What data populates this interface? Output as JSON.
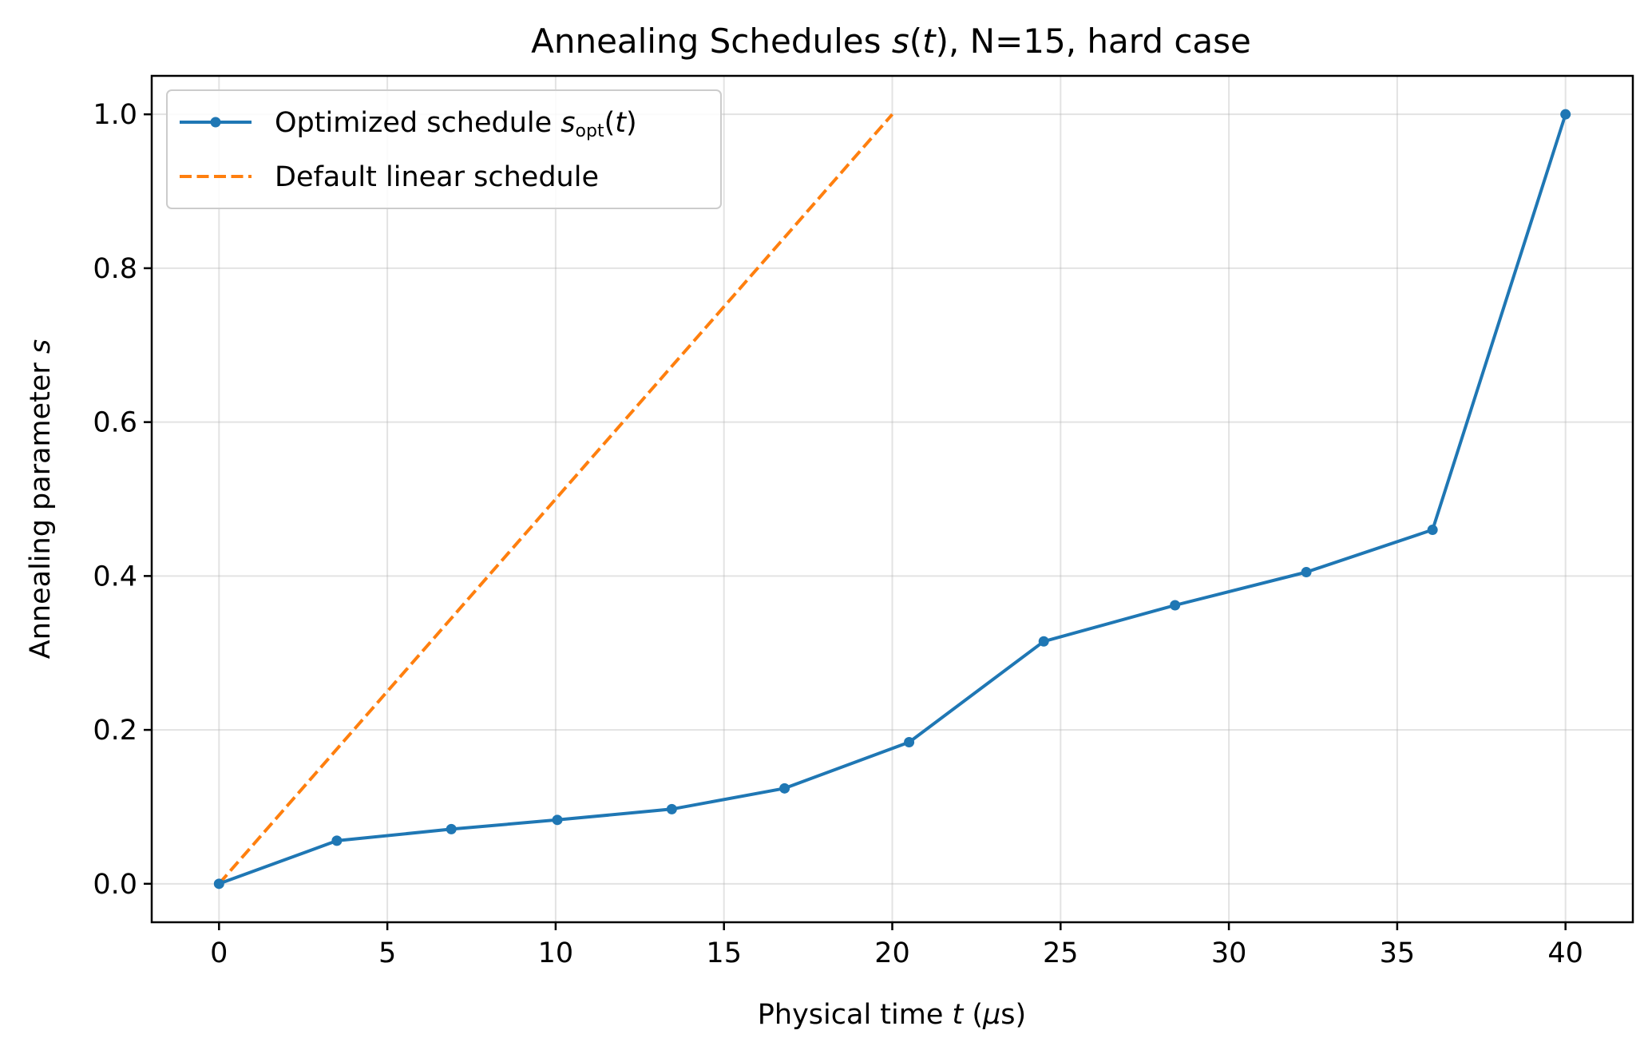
{
  "chart_data": {
    "type": "line",
    "title": {
      "prefix": "Annealing Schedules ",
      "func": "s",
      "paren_open": "(",
      "var": "t",
      "suffix": "), N=15, hard case"
    },
    "xlabel": {
      "prefix": "Physical time ",
      "var": "t",
      "paren_open": " (",
      "mu": "μ",
      "unit": "s)"
    },
    "ylabel": {
      "prefix": "Annealing parameter ",
      "var": "s"
    },
    "xlim": [
      -2,
      42
    ],
    "ylim": [
      -0.05,
      1.05
    ],
    "xticks": [
      0,
      5,
      10,
      15,
      20,
      25,
      30,
      35,
      40
    ],
    "yticks": [
      0.0,
      0.2,
      0.4,
      0.6,
      0.8,
      1.0
    ],
    "xtick_labels": [
      "0",
      "5",
      "10",
      "15",
      "20",
      "25",
      "30",
      "35",
      "40"
    ],
    "ytick_labels": [
      "0.0",
      "0.2",
      "0.4",
      "0.6",
      "0.8",
      "1.0"
    ],
    "grid": true,
    "legend_position": "top-left",
    "series": [
      {
        "name": "Optimized schedule",
        "legend": {
          "prefix": "Optimized schedule ",
          "var": "s",
          "sub": "opt",
          "paren_open": "(",
          "arg": "t",
          "paren_close": ")"
        },
        "color": "#1f77b4",
        "style": "solid",
        "markers": true,
        "x": [
          0,
          3.5,
          6.9,
          10.05,
          13.45,
          16.8,
          20.5,
          24.5,
          28.4,
          32.3,
          36.05,
          40
        ],
        "y": [
          0.0,
          0.056,
          0.071,
          0.083,
          0.097,
          0.124,
          0.184,
          0.315,
          0.362,
          0.405,
          0.46,
          1.0
        ]
      },
      {
        "name": "Default linear schedule",
        "legend": {
          "prefix": "Default linear schedule"
        },
        "color": "#ff7f0e",
        "style": "dashed",
        "markers": false,
        "x": [
          0,
          20
        ],
        "y": [
          0.0,
          1.0
        ]
      }
    ]
  }
}
